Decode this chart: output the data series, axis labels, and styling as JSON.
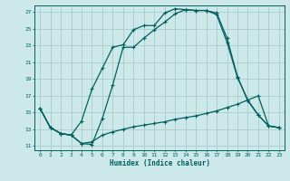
{
  "bg_color": "#cce8e8",
  "grid_color": "#aacccc",
  "line_color": "#005f5f",
  "marker": "+",
  "markersize": 3.5,
  "linewidth": 0.9,
  "xlabel": "Humidex (Indice chaleur)",
  "xlim": [
    -0.5,
    23.5
  ],
  "ylim": [
    10.5,
    27.8
  ],
  "yticks": [
    11,
    13,
    15,
    17,
    19,
    21,
    23,
    25,
    27
  ],
  "xticks": [
    0,
    1,
    2,
    3,
    4,
    5,
    6,
    7,
    8,
    9,
    10,
    11,
    12,
    13,
    14,
    15,
    16,
    17,
    18,
    19,
    20,
    21,
    22,
    23
  ],
  "line1_x": [
    0,
    1,
    2,
    3,
    4,
    5,
    6,
    7,
    8,
    9,
    10,
    11,
    12,
    13,
    14,
    15,
    16,
    17,
    18,
    19,
    20,
    21,
    22,
    23
  ],
  "line1_y": [
    15.5,
    13.2,
    12.5,
    12.3,
    14.0,
    17.8,
    20.3,
    22.8,
    23.1,
    24.9,
    25.4,
    25.4,
    26.9,
    27.4,
    27.3,
    27.2,
    27.2,
    26.7,
    23.4,
    19.2,
    16.5,
    14.7,
    13.4,
    13.2
  ],
  "line2_x": [
    0,
    1,
    2,
    3,
    4,
    5,
    6,
    7,
    8,
    9,
    10,
    11,
    12,
    13,
    14,
    15,
    16,
    17,
    18,
    19,
    20,
    21,
    22,
    23
  ],
  "line2_y": [
    15.5,
    13.2,
    12.5,
    12.3,
    11.3,
    11.2,
    14.3,
    18.3,
    22.8,
    22.8,
    23.9,
    24.9,
    25.8,
    26.8,
    27.3,
    27.2,
    27.2,
    26.9,
    23.9,
    19.3,
    16.4,
    14.7,
    13.4,
    13.2
  ],
  "line3_x": [
    0,
    1,
    2,
    3,
    4,
    5,
    6,
    7,
    8,
    9,
    10,
    11,
    12,
    13,
    14,
    15,
    16,
    17,
    18,
    19,
    20,
    21,
    22,
    23
  ],
  "line3_y": [
    15.5,
    13.2,
    12.5,
    12.3,
    11.3,
    11.5,
    12.3,
    12.7,
    13.0,
    13.3,
    13.5,
    13.7,
    13.9,
    14.2,
    14.4,
    14.6,
    14.9,
    15.2,
    15.6,
    16.0,
    16.5,
    17.0,
    13.4,
    13.2
  ]
}
